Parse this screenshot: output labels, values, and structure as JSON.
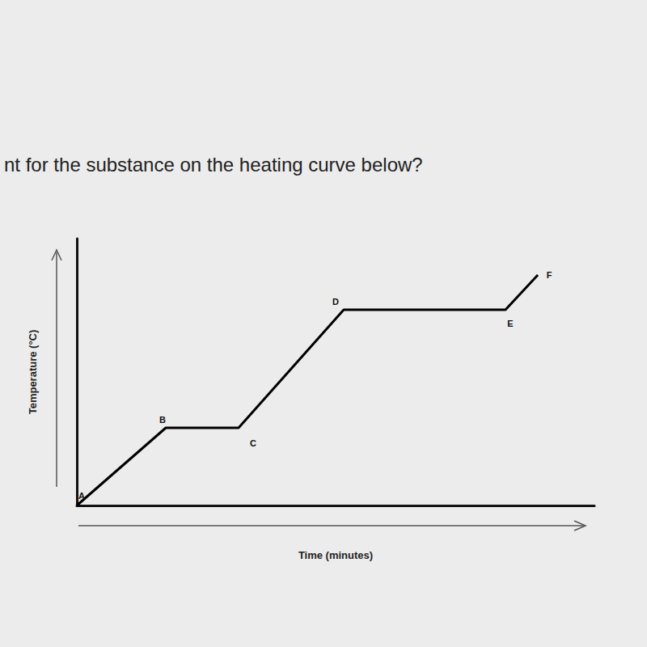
{
  "chart_data": {
    "type": "line",
    "title": "nt for the substance on the heating curve below?",
    "x_label": "Time (minutes)",
    "y_label": "Temperature (°C)",
    "x": [
      0,
      11,
      20,
      33,
      53,
      57
    ],
    "values": [
      0,
      9.6,
      9.6,
      24.2,
      24.2,
      28.5
    ],
    "point_labels": [
      "A",
      "B",
      "C",
      "D",
      "E",
      "F"
    ],
    "xlim": [
      0,
      64
    ],
    "ylim": [
      0,
      33
    ],
    "tick_labels": false,
    "grid": false,
    "color": "#000000"
  }
}
